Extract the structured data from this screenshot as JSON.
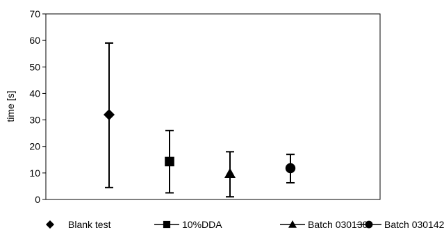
{
  "chart_data": {
    "type": "scatter",
    "ylabel": "time [s]",
    "ylim": [
      0,
      70
    ],
    "yticks": [
      0,
      10,
      20,
      30,
      40,
      50,
      60,
      70
    ],
    "grid": false,
    "legend_position": "bottom",
    "series": [
      {
        "name": "Blank test",
        "marker": "diamond",
        "value": 32,
        "low": 4.5,
        "high": 59
      },
      {
        "name": "10%DDA",
        "marker": "square",
        "value": 14.3,
        "low": 2.5,
        "high": 26
      },
      {
        "name": "Batch 030138",
        "marker": "triangle",
        "value": 9.8,
        "low": 1,
        "high": 18
      },
      {
        "name": "Batch 030142",
        "marker": "circle",
        "value": 11.8,
        "low": 6.3,
        "high": 17
      }
    ]
  },
  "colors": {
    "marks": "#000000",
    "background": "#ffffff"
  }
}
